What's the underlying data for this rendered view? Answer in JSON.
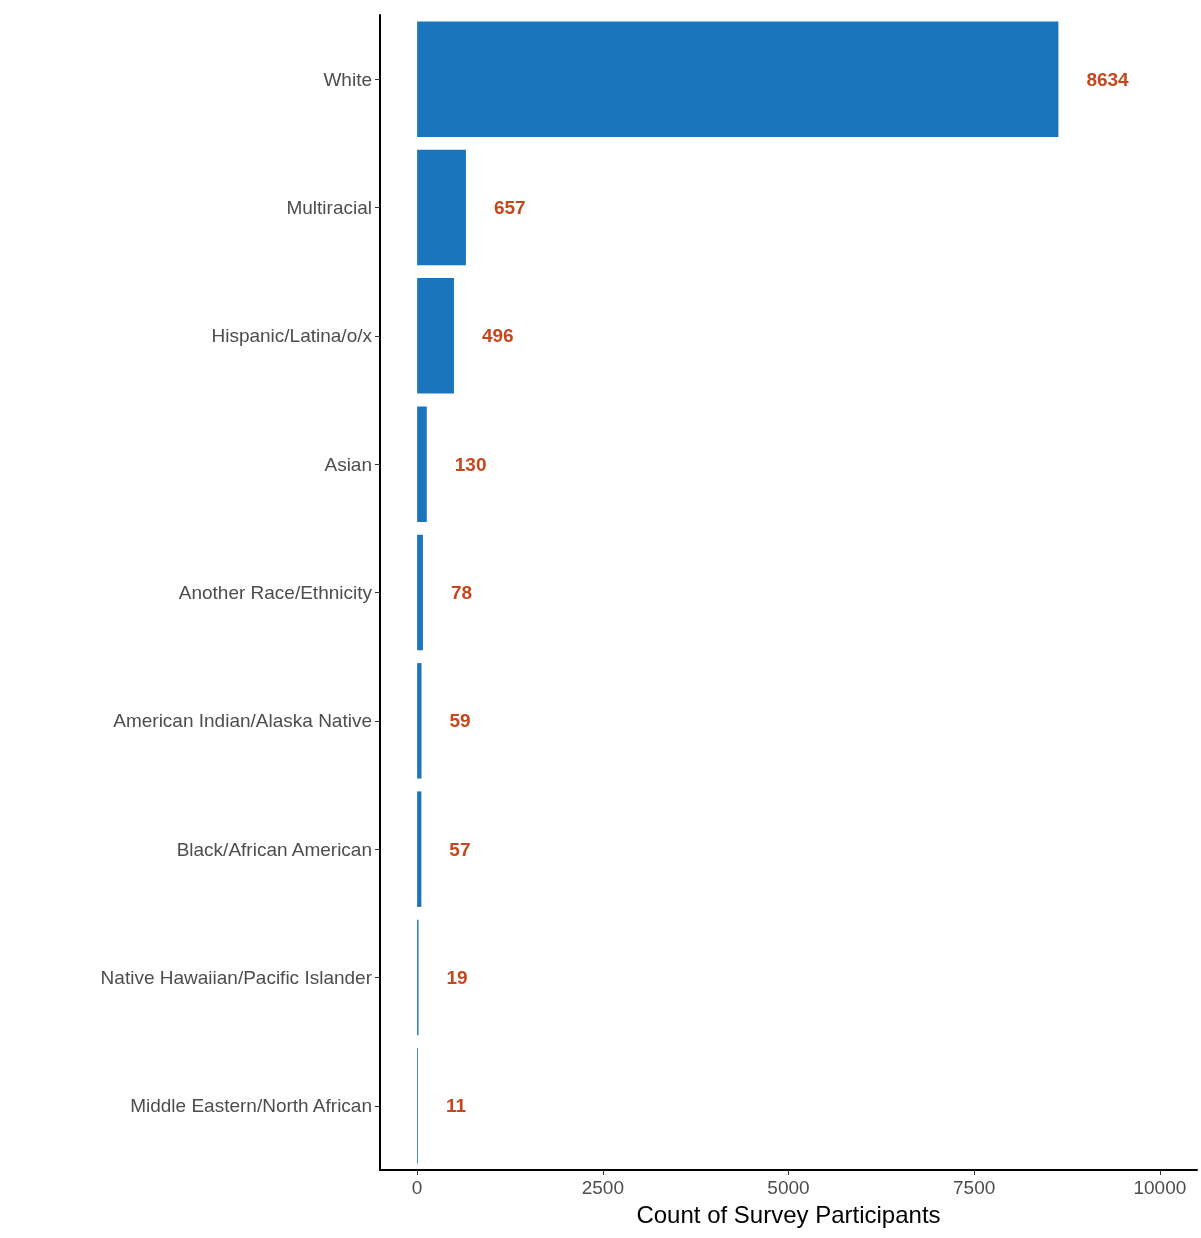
{
  "chart_data": {
    "type": "bar",
    "orientation": "horizontal",
    "xlabel": "Count of Survey Participants",
    "categories": [
      "White",
      "Multiracial",
      "Hispanic/Latina/o/x",
      "Asian",
      "Another Race/Ethnicity",
      "American Indian/Alaska Native",
      "Black/African American",
      "Native Hawaiian/Pacific Islander",
      "Middle Eastern/North African"
    ],
    "values": [
      8634,
      657,
      496,
      130,
      78,
      59,
      57,
      19,
      11
    ],
    "color": "#1b75bc",
    "xlim": [
      -500,
      10500
    ],
    "xticks": [
      0,
      2500,
      5000,
      7500,
      10000
    ],
    "data_labels": true,
    "grid": false
  }
}
